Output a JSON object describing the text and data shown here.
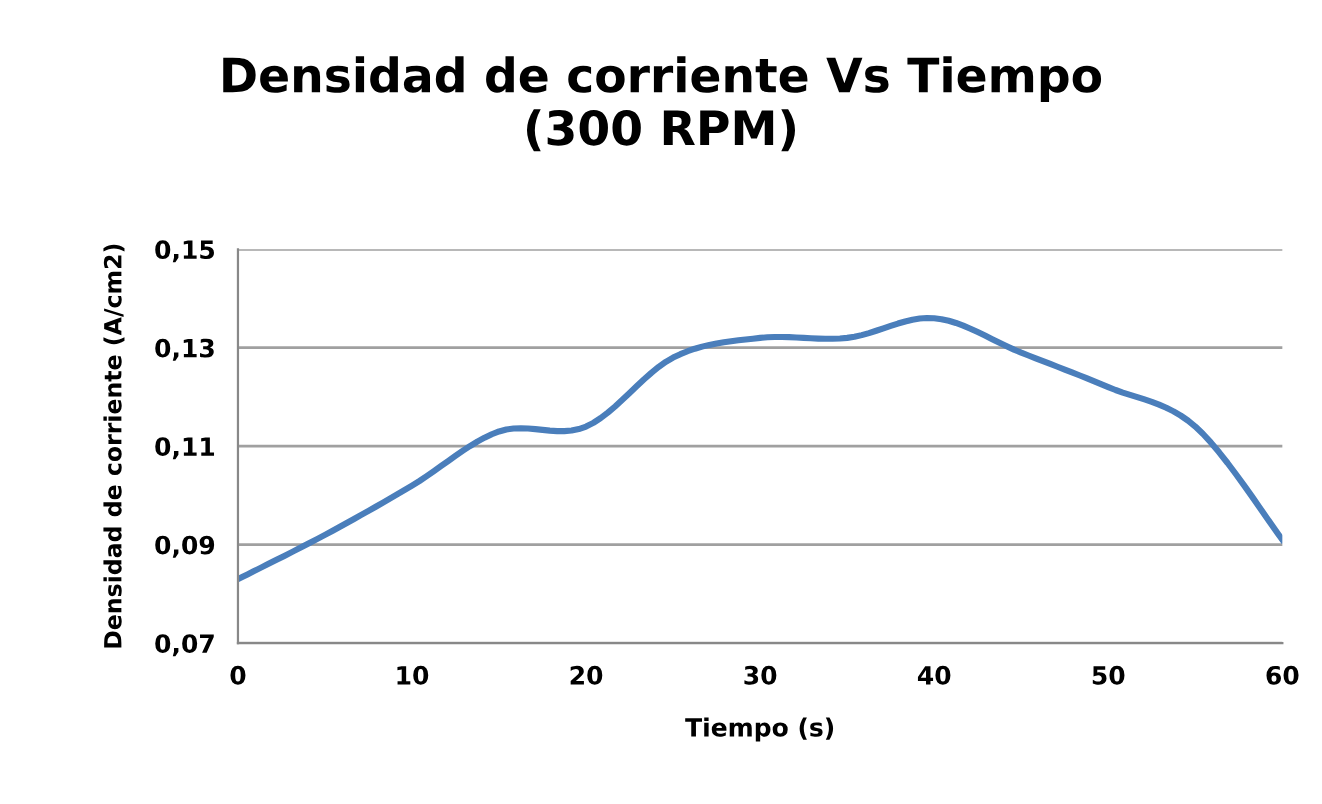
{
  "chart_data": {
    "type": "line",
    "title": "Densidad de corriente Vs Tiempo\n(300 RPM)",
    "xlabel": "Tiempo (s)",
    "ylabel": "Densidad de corriente (A/cm2)",
    "x": [
      0,
      5,
      10,
      15,
      20,
      25,
      30,
      35,
      40,
      45,
      50,
      55,
      60
    ],
    "series": [
      {
        "color": "#4a7ebb",
        "values": [
          0.083,
          0.092,
          0.102,
          0.113,
          0.114,
          0.128,
          0.132,
          0.132,
          0.136,
          0.129,
          0.122,
          0.114,
          0.091
        ]
      }
    ],
    "xlim": [
      0,
      60
    ],
    "xticks": [
      0,
      10,
      20,
      30,
      40,
      50,
      60
    ],
    "ylim": [
      0.07,
      0.15
    ],
    "yticks": [
      {
        "value": 0.07,
        "label": "0,07"
      },
      {
        "value": 0.09,
        "label": "0,09"
      },
      {
        "value": 0.11,
        "label": "0,11"
      },
      {
        "value": 0.13,
        "label": "0,13"
      },
      {
        "value": 0.15,
        "label": "0,15"
      }
    ],
    "grid": "y",
    "legend": false,
    "marker": "none",
    "line_style": "solid"
  }
}
